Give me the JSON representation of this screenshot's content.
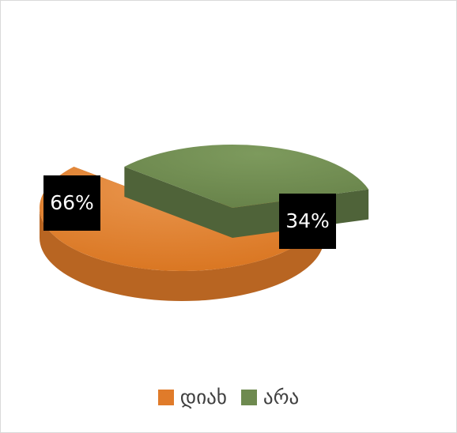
{
  "chart_data": {
    "type": "pie",
    "title": "",
    "categories": [
      "დიახ",
      "არა"
    ],
    "values": [
      66,
      34
    ],
    "data_labels": [
      "66%",
      "34%"
    ],
    "colors": [
      "#e07b2a",
      "#6e8a4f"
    ],
    "exploded": true,
    "three_d": true,
    "legend": "bottom"
  }
}
